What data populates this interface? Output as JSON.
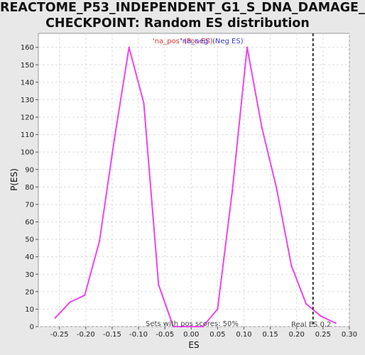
{
  "chart_data": {
    "type": "line",
    "title_line1": "REACTOME_P53_INDEPENDENT_G1_S_DNA_DAMAGE_",
    "title_line2": "CHECKPOINT: Random ES distribution",
    "xlabel": "ES",
    "ylabel": "P(ES)",
    "xlim": [
      -0.29,
      0.3
    ],
    "ylim": [
      0,
      168
    ],
    "xticks": [
      -0.25,
      -0.2,
      -0.15,
      -0.1,
      -0.05,
      0.0,
      0.05,
      0.1,
      0.15,
      0.2,
      0.25,
      0.3
    ],
    "xtick_labels": [
      "-0.25",
      "-0.20",
      "-0.15",
      "-0.10",
      "-0.05",
      "0.00",
      "0.05",
      "0.10",
      "0.15",
      "0.20",
      "0.25",
      "0.30"
    ],
    "yticks": [
      0,
      10,
      20,
      30,
      40,
      50,
      60,
      70,
      80,
      90,
      100,
      110,
      120,
      130,
      140,
      150,
      160
    ],
    "grid": true,
    "legend": {
      "placement": "top-center",
      "entries": [
        {
          "label": "'na_pos' (Pos ES)",
          "color": "#e03030"
        },
        {
          "label": "'na_neg' (Neg ES)",
          "color": "#3a3ad0"
        }
      ]
    },
    "series": [
      {
        "color": "#ee44ee",
        "x": [
          -0.258,
          -0.23,
          -0.202,
          -0.174,
          -0.146,
          -0.118,
          -0.09,
          -0.062,
          -0.034,
          -0.006,
          0.022,
          0.05,
          0.078,
          0.106,
          0.134,
          0.162,
          0.19,
          0.218,
          0.246,
          0.274
        ],
        "y": [
          5,
          14,
          18,
          49,
          107,
          160,
          128,
          24,
          0,
          0,
          0,
          10,
          78,
          160,
          114,
          79,
          35,
          13,
          6,
          2
        ]
      }
    ],
    "reference_line": {
      "x": 0.231,
      "label": "Real ES 0.2",
      "style": "dashed",
      "color": "#333333"
    },
    "annotation": "Sets with pos scores: 50%"
  }
}
